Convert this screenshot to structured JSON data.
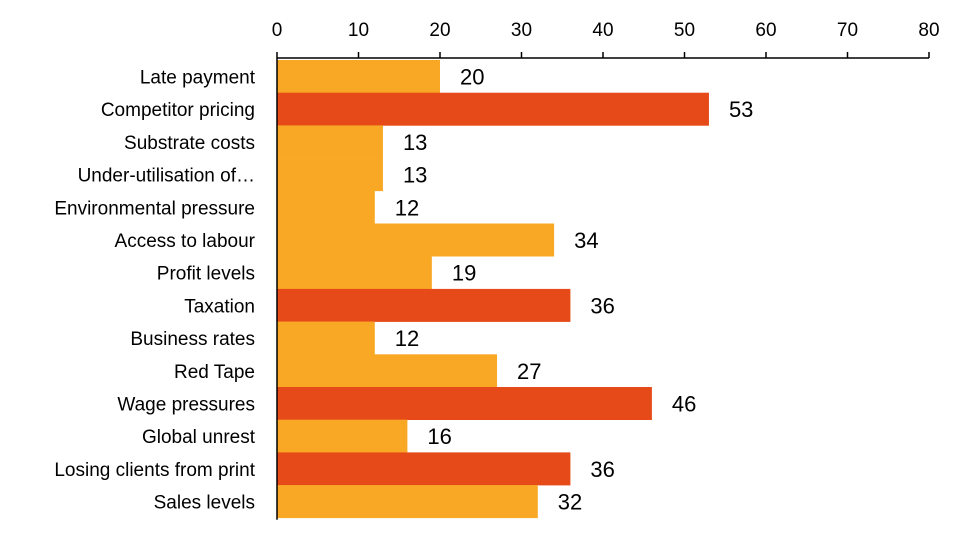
{
  "chart_data": {
    "type": "bar",
    "orientation": "horizontal",
    "title": "",
    "xlabel": "",
    "ylabel": "",
    "xlim": [
      0,
      80
    ],
    "x_ticks": [
      0,
      10,
      20,
      30,
      40,
      50,
      60,
      70,
      80
    ],
    "x_axis_position": "top",
    "grid": false,
    "legend": "none",
    "categories": [
      "Late payment",
      "Competitor pricing",
      "Substrate costs",
      "Under-utilisation of…",
      "Environmental pressure",
      "Access to labour",
      "Profit levels",
      "Taxation",
      "Business rates",
      "Red Tape",
      "Wage pressures",
      "Global unrest",
      "Losing clients from print",
      "Sales levels"
    ],
    "values": [
      20,
      53,
      13,
      13,
      12,
      34,
      19,
      36,
      12,
      27,
      46,
      16,
      36,
      32
    ],
    "value_labels": [
      "20",
      "53",
      "13",
      "13",
      "12",
      "34",
      "19",
      "36",
      "12",
      "27",
      "46",
      "16",
      "36",
      "32"
    ],
    "highlighted": [
      false,
      true,
      false,
      false,
      false,
      false,
      false,
      true,
      false,
      false,
      true,
      false,
      true,
      false
    ],
    "colors": {
      "default": "#F9A825",
      "highlight": "#E64A19",
      "axis": "#000000"
    }
  }
}
